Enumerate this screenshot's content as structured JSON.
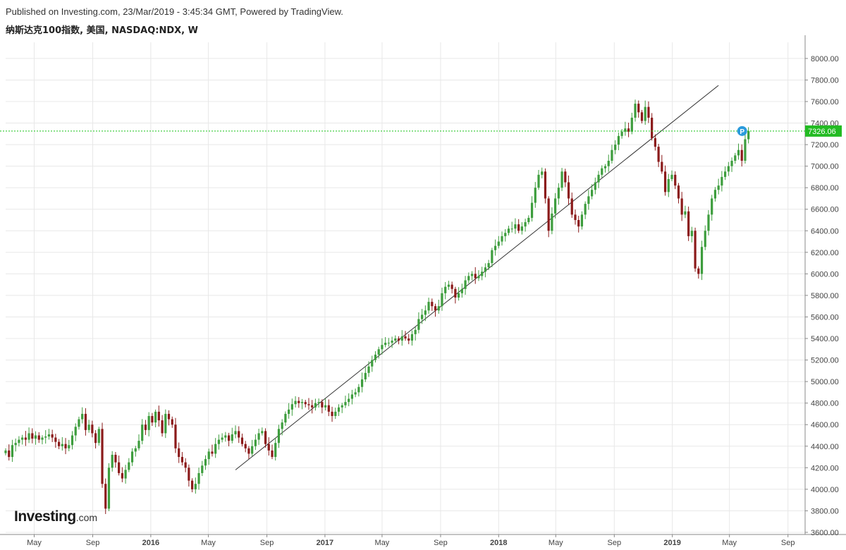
{
  "header": {
    "published": "Published on Investing.com, 23/Mar/2019 - 3:45:34 GMT, Powered by TradingView.",
    "instrument": "纳斯达克100指数, 美国, NASDAQ:NDX, W"
  },
  "logo": {
    "main": "Investing",
    "suffix": ".com"
  },
  "colors": {
    "up": "#3d9d3d",
    "down": "#8b1a1a",
    "grid": "#e8e8e8",
    "trendline": "#333333",
    "last_price_line": "#19c419",
    "last_price_badge": "#22bb22",
    "marker": "#2a9bdc"
  },
  "chart_data": {
    "type": "candlestick",
    "interval": "W",
    "x_range": [
      "2015-03-02",
      "2019-10-07"
    ],
    "y_range": [
      3580,
      8150
    ],
    "price_ticks": [
      3600,
      3800,
      4000,
      4200,
      4400,
      4600,
      4800,
      5000,
      5200,
      5400,
      5600,
      5800,
      6000,
      6200,
      6400,
      6600,
      6800,
      7000,
      7200,
      7400,
      7600,
      7800,
      8000
    ],
    "price_tick_labels": [
      "3600.00",
      "3800.00",
      "4000.00",
      "4200.00",
      "4400.00",
      "4600.00",
      "4800.00",
      "5000.00",
      "5200.00",
      "5400.00",
      "5600.00",
      "5800.00",
      "6000.00",
      "6200.00",
      "6400.00",
      "6600.00",
      "6800.00",
      "7000.00",
      "7200.00",
      "7400.00",
      "7600.00",
      "7800.00",
      "8000.00"
    ],
    "date_ticks": [
      {
        "label": "May",
        "date": "2015-05-01",
        "bold": false
      },
      {
        "label": "Sep",
        "date": "2015-09-01",
        "bold": false
      },
      {
        "label": "2016",
        "date": "2016-01-01",
        "bold": true
      },
      {
        "label": "May",
        "date": "2016-05-01",
        "bold": false
      },
      {
        "label": "Sep",
        "date": "2016-09-01",
        "bold": false
      },
      {
        "label": "2017",
        "date": "2017-01-01",
        "bold": true
      },
      {
        "label": "May",
        "date": "2017-05-01",
        "bold": false
      },
      {
        "label": "Sep",
        "date": "2017-09-01",
        "bold": false
      },
      {
        "label": "2018",
        "date": "2018-01-01",
        "bold": true
      },
      {
        "label": "May",
        "date": "2018-05-01",
        "bold": false
      },
      {
        "label": "Sep",
        "date": "2018-09-01",
        "bold": false
      },
      {
        "label": "2019",
        "date": "2019-01-01",
        "bold": true
      },
      {
        "label": "May",
        "date": "2019-05-01",
        "bold": false
      },
      {
        "label": "Sep",
        "date": "2019-09-01",
        "bold": false
      }
    ],
    "last_price": 7326.06,
    "last_price_label": "7326.06",
    "marker_label": "P",
    "trendline": {
      "start": {
        "date": "2016-06-27",
        "value": 4180
      },
      "end": {
        "date": "2019-04-08",
        "value": 7750
      }
    },
    "first_week": "2015-03-02",
    "weekly_closes": [
      4360,
      4300,
      4410,
      4430,
      4460,
      4480,
      4460,
      4520,
      4470,
      4500,
      4460,
      4480,
      4490,
      4510,
      4480,
      4440,
      4400,
      4420,
      4380,
      4410,
      4500,
      4580,
      4650,
      4700,
      4550,
      4600,
      4520,
      4430,
      4560,
      4050,
      3820,
      4200,
      4320,
      4250,
      4150,
      4100,
      4180,
      4250,
      4350,
      4380,
      4450,
      4600,
      4550,
      4680,
      4620,
      4720,
      4640,
      4520,
      4700,
      4650,
      4600,
      4380,
      4300,
      4250,
      4200,
      4080,
      4000,
      4050,
      4150,
      4220,
      4280,
      4350,
      4330,
      4420,
      4460,
      4480,
      4500,
      4450,
      4510,
      4540,
      4480,
      4420,
      4380,
      4330,
      4400,
      4460,
      4520,
      4540,
      4420,
      4360,
      4300,
      4430,
      4560,
      4620,
      4700,
      4740,
      4790,
      4820,
      4800,
      4810,
      4790,
      4780,
      4760,
      4800,
      4810,
      4760,
      4780,
      4720,
      4680,
      4720,
      4760,
      4780,
      4810,
      4840,
      4880,
      4900,
      4950,
      5020,
      5080,
      5140,
      5200,
      5250,
      5300,
      5340,
      5360,
      5360,
      5380,
      5400,
      5380,
      5420,
      5400,
      5380,
      5440,
      5480,
      5580,
      5620,
      5660,
      5740,
      5700,
      5660,
      5700,
      5820,
      5880,
      5900,
      5860,
      5780,
      5820,
      5860,
      5940,
      5980,
      6000,
      5960,
      5980,
      6020,
      6060,
      6100,
      6220,
      6260,
      6300,
      6350,
      6380,
      6420,
      6420,
      6460,
      6400,
      6440,
      6480,
      6520,
      6660,
      6800,
      6920,
      6950,
      6700,
      6400,
      6560,
      6700,
      6800,
      6950,
      6850,
      6700,
      6550,
      6500,
      6440,
      6550,
      6650,
      6720,
      6780,
      6850,
      6920,
      6980,
      7000,
      7050,
      7150,
      7200,
      7280,
      7320,
      7350,
      7320,
      7450,
      7580,
      7500,
      7420,
      7550,
      7450,
      7260,
      7180,
      7040,
      6950,
      6760,
      6880,
      6920,
      6820,
      6700,
      6550,
      6580,
      6350,
      6400,
      6050,
      6000,
      6250,
      6400,
      6550,
      6700,
      6780,
      6820,
      6900,
      6950,
      7000,
      7050,
      7100,
      7150,
      7050,
      7250,
      7326.06
    ]
  }
}
